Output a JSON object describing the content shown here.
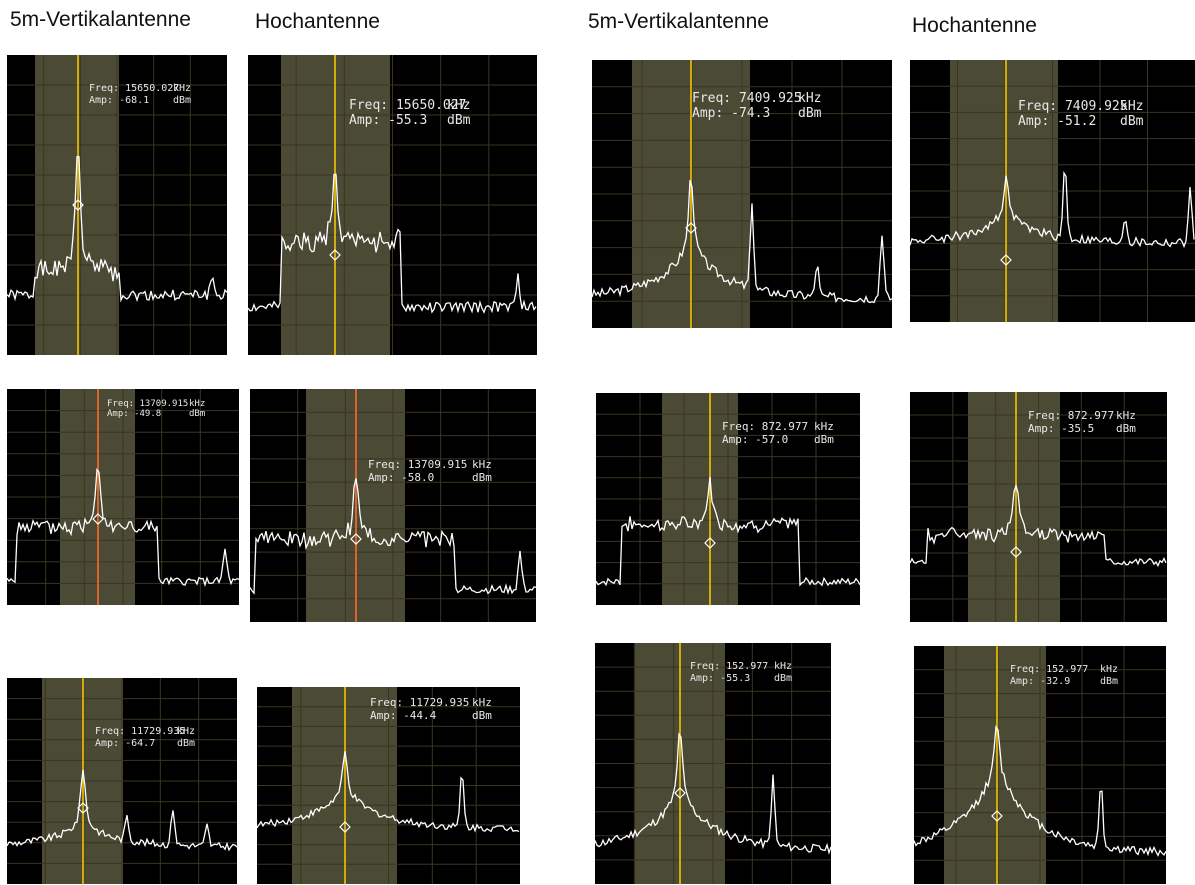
{
  "headings": [
    "5m-Vertikalantenne",
    "Hochantenne",
    "5m-Vertikalantenne",
    "Hochantenne"
  ],
  "colors": {
    "background": "#000000",
    "grid": "#3a3520",
    "passband": "#4b4a35",
    "trace": "#ffffff",
    "marker_yellow": "#f5c400",
    "marker_orange": "#ff6a2a",
    "readout": "#e8e8e8"
  },
  "readout_labels": {
    "freq": "Freq:",
    "amp": "Amp:",
    "freq_unit": "kHz",
    "amp_unit": "dBm"
  },
  "chart_data": [
    {
      "type": "line",
      "antenna": "5m-Vertikalantenne",
      "freq": "15650.027",
      "amp": "-68.1"
    },
    {
      "type": "line",
      "antenna": "Hochantenne",
      "freq": "15650.027",
      "amp": "-55.3"
    },
    {
      "type": "line",
      "antenna": "5m-Vertikalantenne",
      "freq": "7409.925",
      "amp": "-74.3"
    },
    {
      "type": "line",
      "antenna": "Hochantenne",
      "freq": "7409.925",
      "amp": "-51.2"
    },
    {
      "type": "line",
      "antenna": "5m-Vertikalantenne",
      "freq": "13709.915",
      "amp": "-49.8"
    },
    {
      "type": "line",
      "antenna": "Hochantenne",
      "freq": "13709.915",
      "amp": "-58.0"
    },
    {
      "type": "line",
      "antenna": "5m-Vertikalantenne",
      "freq": "872.977",
      "amp": "-57.0"
    },
    {
      "type": "line",
      "antenna": "Hochantenne",
      "freq": "872.977",
      "amp": "-35.5"
    },
    {
      "type": "line",
      "antenna": "5m-Vertikalantenne",
      "freq": "11729.935",
      "amp": "-64.7"
    },
    {
      "type": "line",
      "antenna": "Hochantenne",
      "freq": "11729.935",
      "amp": "-44.4"
    },
    {
      "type": "line",
      "antenna": "5m-Vertikalantenne",
      "freq": "152.977",
      "amp": "-55.3"
    },
    {
      "type": "line",
      "antenna": "Hochantenne",
      "freq": "152.977",
      "amp": "-32.9"
    }
  ]
}
